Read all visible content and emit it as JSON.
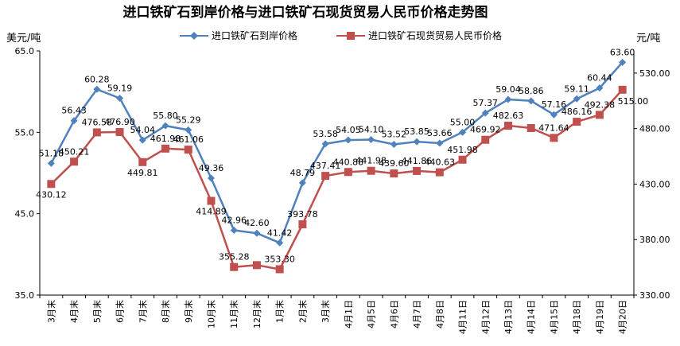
{
  "chart_data": {
    "type": "line",
    "title": "进口铁矿石到岸价格与进口铁矿石现货贸易人民币价格走势图",
    "left_unit": "美元/吨",
    "right_unit": "元/吨",
    "categories": [
      "3月末",
      "4月末",
      "5月末",
      "6月末",
      "7月末",
      "8月末",
      "9月末",
      "10月末",
      "11月末",
      "12月末",
      "1月末",
      "2月末",
      "3月末",
      "4月1日",
      "4月5日",
      "4月6日",
      "4月7日",
      "4月8日",
      "4月11日",
      "4月12日",
      "4月13日",
      "4月14日",
      "4月15日",
      "4月18日",
      "4月19日",
      "4月20日"
    ],
    "series": [
      {
        "name": "进口铁矿石到岸价格",
        "axis": "left",
        "color": "#4f81bd",
        "marker": "diamond",
        "values": [
          51.18,
          56.43,
          60.28,
          59.19,
          54.04,
          55.8,
          55.29,
          49.36,
          42.96,
          42.6,
          41.42,
          48.79,
          53.58,
          54.05,
          54.1,
          53.52,
          53.85,
          53.66,
          55.0,
          57.37,
          59.04,
          58.86,
          57.16,
          59.11,
          60.44,
          63.6
        ],
        "labels": [
          "51.18",
          "56.43",
          "60.28",
          "59.19",
          "54.04",
          "55.80",
          "55.29",
          "49.36",
          "42.96",
          "42.60",
          "41.42",
          "48.79",
          "53.58",
          "54.05",
          "54.10",
          "53.52",
          "53.85",
          "53.66",
          "55.00",
          "57.37",
          "59.04",
          "58.86",
          "57.16",
          "59.11",
          "60.44",
          "63.60"
        ]
      },
      {
        "name": "进口铁矿石现货贸易人民币价格",
        "axis": "right",
        "color": "#c0504d",
        "marker": "square",
        "values": [
          430.12,
          450.21,
          476.58,
          476.9,
          449.81,
          461.98,
          461.06,
          414.89,
          355.28,
          357.0,
          353.3,
          393.78,
          437.41,
          440.88,
          441.98,
          439.6,
          441.86,
          440.63,
          451.98,
          469.92,
          482.63,
          480.5,
          471.64,
          486.16,
          492.38,
          515.0
        ],
        "labels": [
          "430.12",
          "450.21",
          "476.58",
          "476.90",
          "449.81",
          "461.98",
          "461.06",
          "414.89",
          "355.28",
          "",
          "353.30",
          "393.78",
          "437.41",
          "440.88",
          "441.98",
          "439.60",
          "441.86",
          "440.63",
          "451.98",
          "469.92",
          "482.63",
          "",
          "471.64",
          "486.16",
          "492.38",
          "515.00"
        ]
      }
    ],
    "left_axis": {
      "min": 35.0,
      "max": 65.0,
      "ticks": [
        "35.0",
        "45.0",
        "55.0",
        "65.0"
      ]
    },
    "right_axis": {
      "min": 330.0,
      "max": 550.0,
      "ticks": [
        "330.00",
        "380.00",
        "430.00",
        "480.00",
        "530.00"
      ]
    },
    "grid": false,
    "legend_position": "top"
  }
}
